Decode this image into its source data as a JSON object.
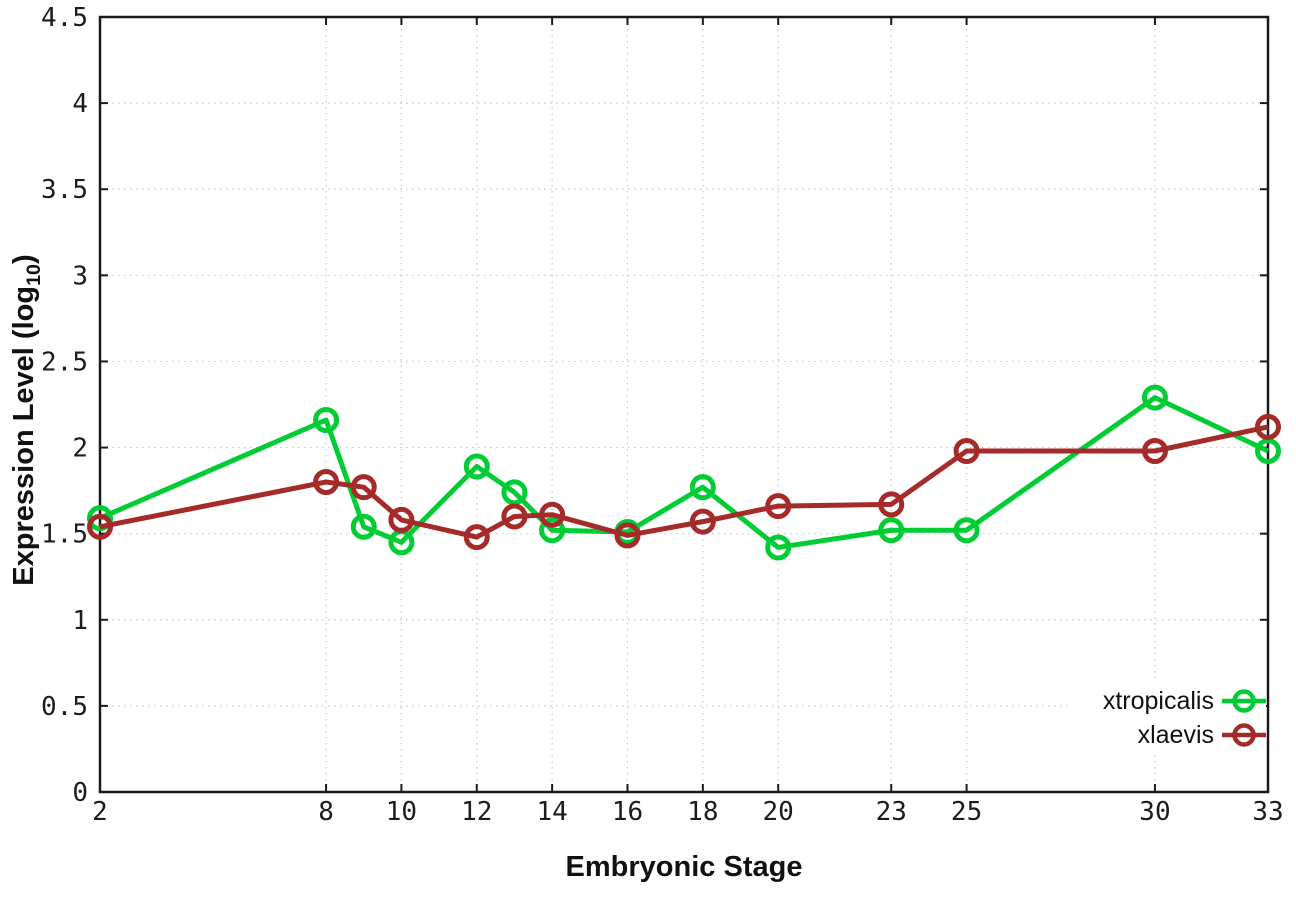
{
  "chart_data": {
    "type": "line",
    "title": "",
    "xlabel": "Embryonic Stage",
    "ylabel": "Expression Level (log10)",
    "ylabel_parts": {
      "main": "Expression Level (log",
      "sub": "10",
      "end": ")"
    },
    "x": [
      2,
      8,
      9,
      10,
      12,
      13,
      14,
      16,
      18,
      20,
      23,
      25,
      30,
      33
    ],
    "series": [
      {
        "name": "xtropicalis",
        "color": "#00cc33",
        "values": [
          1.59,
          2.16,
          1.54,
          1.45,
          1.89,
          1.74,
          1.52,
          1.51,
          1.77,
          1.42,
          1.52,
          1.52,
          2.29,
          1.98
        ]
      },
      {
        "name": "xlaevis",
        "color": "#a52a2a",
        "values": [
          1.54,
          1.8,
          1.77,
          1.58,
          1.48,
          1.6,
          1.61,
          1.49,
          1.57,
          1.66,
          1.67,
          1.98,
          1.98,
          2.12
        ]
      }
    ],
    "xticks": [
      "2",
      "8",
      "10",
      "12",
      "14",
      "16",
      "18",
      "20",
      "23",
      "25",
      "30",
      "33"
    ],
    "yticks": [
      "0",
      "0.5",
      "1",
      "1.5",
      "2",
      "2.5",
      "3",
      "3.5",
      "4",
      "4.5"
    ],
    "xlim": [
      2,
      33
    ],
    "ylim": [
      0,
      4.5
    ],
    "grid": true,
    "legend_position": "bottom-right",
    "colors": {
      "background": "#ffffff",
      "grid": "#c6c6c6",
      "axis": "#1a1a1a",
      "text": "#111111"
    }
  }
}
